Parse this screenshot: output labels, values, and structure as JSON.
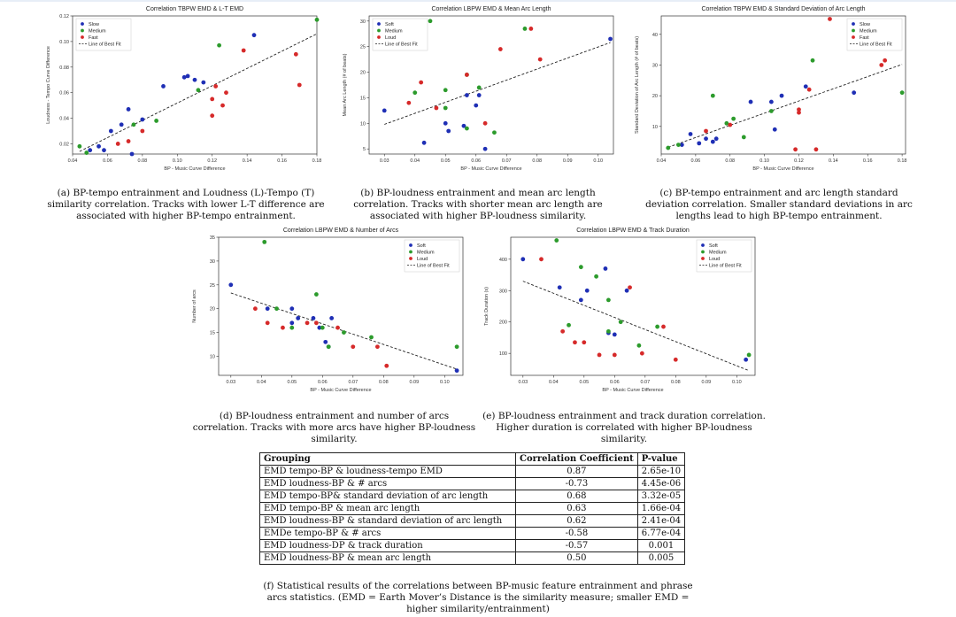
{
  "figures": [
    {
      "id": "a",
      "chart_data": {
        "type": "scatter",
        "title": "Correlation TBPW EMD & L-T EMD",
        "xlabel": "BP - Music Curve Difference",
        "ylabel": "Loudness - Tempo Curve Difference",
        "xlim": [
          0.04,
          0.18
        ],
        "ylim": [
          0.012,
          0.12
        ],
        "xticks": [
          "0.04",
          "0.06",
          "0.08",
          "0.10",
          "0.12",
          "0.14",
          "0.16",
          "0.18"
        ],
        "yticks": [
          "0.02",
          "0.04",
          "0.06",
          "0.08",
          "0.10",
          "0.12"
        ],
        "legend_position": "top-left",
        "series": [
          {
            "name": "Slow",
            "color": "#1f2fb5",
            "points": [
              [
                0.058,
                0.015
              ],
              [
                0.062,
                0.03
              ],
              [
                0.068,
                0.035
              ],
              [
                0.072,
                0.047
              ],
              [
                0.08,
                0.039
              ],
              [
                0.092,
                0.065
              ],
              [
                0.104,
                0.072
              ],
              [
                0.106,
                0.073
              ],
              [
                0.11,
                0.07
              ],
              [
                0.115,
                0.068
              ],
              [
                0.144,
                0.105
              ],
              [
                0.05,
                0.015
              ],
              [
                0.055,
                0.018
              ],
              [
                0.074,
                0.012
              ]
            ]
          },
          {
            "name": "Medium",
            "color": "#2c9b2c",
            "points": [
              [
                0.044,
                0.018
              ],
              [
                0.048,
                0.013
              ],
              [
                0.075,
                0.035
              ],
              [
                0.088,
                0.038
              ],
              [
                0.112,
                0.062
              ],
              [
                0.124,
                0.097
              ],
              [
                0.18,
                0.117
              ]
            ]
          },
          {
            "name": "Fast",
            "color": "#d62a2a",
            "points": [
              [
                0.066,
                0.02
              ],
              [
                0.072,
                0.022
              ],
              [
                0.08,
                0.03
              ],
              [
                0.12,
                0.042
              ],
              [
                0.122,
                0.065
              ],
              [
                0.126,
                0.05
              ],
              [
                0.128,
                0.06
              ],
              [
                0.138,
                0.093
              ],
              [
                0.168,
                0.09
              ],
              [
                0.17,
                0.066
              ],
              [
                0.12,
                0.055
              ]
            ]
          }
        ],
        "fit_name": "Line of Best Fit",
        "fit_line": [
          [
            0.044,
            0.014
          ],
          [
            0.18,
            0.106
          ]
        ]
      },
      "caption": [
        "(a) BP-tempo entrainment and Loudness (L)-Tempo (T)",
        "similarity correlation. Tracks with lower L-T difference are",
        "associated with higher BP-tempo entrainment."
      ]
    },
    {
      "id": "b",
      "chart_data": {
        "type": "scatter",
        "title": "Correlation LBPW EMD & Mean Arc Length",
        "xlabel": "BP - Music Curve Difference",
        "ylabel": "Mean Arc Length (# of beats)",
        "xlim": [
          0.025,
          0.105
        ],
        "ylim": [
          4,
          31
        ],
        "xticks": [
          "0.03",
          "0.04",
          "0.05",
          "0.06",
          "0.07",
          "0.08",
          "0.09",
          "0.10"
        ],
        "yticks": [
          "5",
          "10",
          "15",
          "20",
          "25",
          "30"
        ],
        "legend_position": "top-left",
        "series": [
          {
            "name": "Soft",
            "color": "#1f2fb5",
            "points": [
              [
                0.03,
                12.5
              ],
              [
                0.043,
                6.2
              ],
              [
                0.05,
                10
              ],
              [
                0.051,
                8.5
              ],
              [
                0.056,
                9.5
              ],
              [
                0.057,
                15.5
              ],
              [
                0.06,
                13.5
              ],
              [
                0.061,
                15.5
              ],
              [
                0.063,
                5
              ],
              [
                0.104,
                26.5
              ]
            ]
          },
          {
            "name": "Medium",
            "color": "#2c9b2c",
            "points": [
              [
                0.04,
                16
              ],
              [
                0.045,
                30
              ],
              [
                0.05,
                16.5
              ],
              [
                0.05,
                13
              ],
              [
                0.057,
                9
              ],
              [
                0.057,
                19.5
              ],
              [
                0.061,
                17
              ],
              [
                0.066,
                8.2
              ],
              [
                0.076,
                28.5
              ]
            ]
          },
          {
            "name": "Loud",
            "color": "#d62a2a",
            "points": [
              [
                0.038,
                14
              ],
              [
                0.042,
                18
              ],
              [
                0.047,
                13
              ],
              [
                0.057,
                19.5
              ],
              [
                0.063,
                10
              ],
              [
                0.068,
                24.5
              ],
              [
                0.078,
                28.5
              ],
              [
                0.081,
                22.5
              ]
            ]
          }
        ],
        "fit_name": "Line of Best Fit",
        "fit_line": [
          [
            0.03,
            9.8
          ],
          [
            0.104,
            25.8
          ]
        ]
      },
      "caption": [
        "(b) BP-loudness entrainment and mean arc length",
        "correlation. Tracks with shorter mean arc length are",
        "associated with higher BP-loudness similarity."
      ]
    },
    {
      "id": "c",
      "chart_data": {
        "type": "scatter",
        "title": "Correlation TBPW EMD & Standard Deviation of Arc Length",
        "xlabel": "BP - Music Curve Difference",
        "ylabel": "Standard Deviation of Arc Length (# of beats)",
        "xlim": [
          0.04,
          0.182
        ],
        "ylim": [
          1,
          46
        ],
        "xticks": [
          "0.04",
          "0.06",
          "0.08",
          "0.10",
          "0.12",
          "0.14",
          "0.16",
          "0.18"
        ],
        "yticks": [
          "10",
          "20",
          "30",
          "40"
        ],
        "legend_position": "top-right",
        "series": [
          {
            "name": "Slow",
            "color": "#1f2fb5",
            "points": [
              [
                0.052,
                4
              ],
              [
                0.057,
                7.5
              ],
              [
                0.062,
                4.5
              ],
              [
                0.066,
                6
              ],
              [
                0.07,
                5
              ],
              [
                0.072,
                6
              ],
              [
                0.092,
                18
              ],
              [
                0.104,
                18
              ],
              [
                0.106,
                9
              ],
              [
                0.11,
                20
              ],
              [
                0.124,
                23
              ],
              [
                0.152,
                21
              ]
            ]
          },
          {
            "name": "Medium",
            "color": "#2c9b2c",
            "points": [
              [
                0.044,
                3
              ],
              [
                0.05,
                4
              ],
              [
                0.07,
                20
              ],
              [
                0.078,
                11
              ],
              [
                0.082,
                12.5
              ],
              [
                0.088,
                6.5
              ],
              [
                0.104,
                15
              ],
              [
                0.128,
                31.5
              ],
              [
                0.18,
                21
              ]
            ]
          },
          {
            "name": "Fast",
            "color": "#d62a2a",
            "points": [
              [
                0.066,
                8.5
              ],
              [
                0.08,
                10.5
              ],
              [
                0.118,
                2.5
              ],
              [
                0.12,
                15.5
              ],
              [
                0.12,
                14.5
              ],
              [
                0.126,
                22
              ],
              [
                0.13,
                2.5
              ],
              [
                0.138,
                45
              ],
              [
                0.168,
                30
              ],
              [
                0.17,
                31.5
              ]
            ]
          }
        ],
        "fit_name": "Line of Best Fit",
        "fit_line": [
          [
            0.044,
            3.2
          ],
          [
            0.18,
            30.2
          ]
        ]
      },
      "caption": [
        "(c) BP-tempo entrainment and arc length standard",
        "deviation correlation. Smaller standard deviations in arc",
        "lengths lead to high BP-tempo entrainment."
      ]
    },
    {
      "id": "d",
      "chart_data": {
        "type": "scatter",
        "title": "Correlation LBPW EMD & Number of Arcs",
        "xlabel": "BP - Music Curve Difference",
        "ylabel": "Number of arcs",
        "xlim": [
          0.026,
          0.106
        ],
        "ylim": [
          6,
          35
        ],
        "xticks": [
          "0.03",
          "0.04",
          "0.05",
          "0.06",
          "0.07",
          "0.08",
          "0.09",
          "0.10"
        ],
        "yticks": [
          "10",
          "15",
          "20",
          "25",
          "30",
          "35"
        ],
        "legend_position": "top-right",
        "series": [
          {
            "name": "Soft",
            "color": "#1f2fb5",
            "points": [
              [
                0.03,
                25
              ],
              [
                0.042,
                20
              ],
              [
                0.05,
                20
              ],
              [
                0.05,
                17
              ],
              [
                0.052,
                18
              ],
              [
                0.057,
                18
              ],
              [
                0.059,
                16
              ],
              [
                0.061,
                13
              ],
              [
                0.062,
                12
              ],
              [
                0.063,
                18
              ],
              [
                0.104,
                7
              ]
            ]
          },
          {
            "name": "Medium",
            "color": "#2c9b2c",
            "points": [
              [
                0.041,
                34
              ],
              [
                0.045,
                20
              ],
              [
                0.05,
                16
              ],
              [
                0.058,
                23
              ],
              [
                0.06,
                16
              ],
              [
                0.062,
                12
              ],
              [
                0.067,
                15
              ],
              [
                0.076,
                14
              ],
              [
                0.104,
                12
              ]
            ]
          },
          {
            "name": "Loud",
            "color": "#d62a2a",
            "points": [
              [
                0.038,
                20
              ],
              [
                0.042,
                17
              ],
              [
                0.047,
                16
              ],
              [
                0.055,
                17
              ],
              [
                0.058,
                17
              ],
              [
                0.065,
                16
              ],
              [
                0.07,
                12
              ],
              [
                0.078,
                12
              ],
              [
                0.081,
                8
              ]
            ]
          }
        ],
        "fit_name": "Line of Best Fit",
        "fit_line": [
          [
            0.03,
            23.3
          ],
          [
            0.104,
            7.3
          ]
        ]
      },
      "caption": [
        "(d) BP-loudness entrainment and number of arcs",
        "correlation. Tracks with more arcs have higher BP-loudness",
        "similarity."
      ]
    },
    {
      "id": "e",
      "chart_data": {
        "type": "scatter",
        "title": "Correlation LBPW EMD & Track Duration",
        "xlabel": "BP - Music Curve Difference",
        "ylabel": "Track Duration (s)",
        "xlim": [
          0.026,
          0.106
        ],
        "ylim": [
          30,
          470
        ],
        "xticks": [
          "0.03",
          "0.04",
          "0.05",
          "0.06",
          "0.07",
          "0.08",
          "0.09",
          "0.10"
        ],
        "yticks": [
          "100",
          "200",
          "300",
          "400"
        ],
        "legend_position": "top-right",
        "series": [
          {
            "name": "Soft",
            "color": "#1f2fb5",
            "points": [
              [
                0.03,
                400
              ],
              [
                0.042,
                310
              ],
              [
                0.049,
                270
              ],
              [
                0.051,
                300
              ],
              [
                0.057,
                370
              ],
              [
                0.058,
                165
              ],
              [
                0.06,
                160
              ],
              [
                0.064,
                300
              ],
              [
                0.103,
                80
              ]
            ]
          },
          {
            "name": "Medium",
            "color": "#2c9b2c",
            "points": [
              [
                0.041,
                460
              ],
              [
                0.045,
                190
              ],
              [
                0.049,
                375
              ],
              [
                0.054,
                345
              ],
              [
                0.058,
                170
              ],
              [
                0.058,
                270
              ],
              [
                0.062,
                200
              ],
              [
                0.068,
                125
              ],
              [
                0.074,
                185
              ],
              [
                0.104,
                95
              ]
            ]
          },
          {
            "name": "Loud",
            "color": "#d62a2a",
            "points": [
              [
                0.036,
                400
              ],
              [
                0.043,
                170
              ],
              [
                0.047,
                135
              ],
              [
                0.05,
                135
              ],
              [
                0.055,
                95
              ],
              [
                0.06,
                95
              ],
              [
                0.065,
                310
              ],
              [
                0.069,
                100
              ],
              [
                0.076,
                185
              ],
              [
                0.08,
                80
              ]
            ]
          }
        ],
        "fit_name": "Line of Best Fit",
        "fit_line": [
          [
            0.03,
            330
          ],
          [
            0.104,
            45
          ]
        ]
      },
      "caption": [
        "(e) BP-loudness entrainment and track duration correlation.",
        "Higher duration is correlated with higher BP-loudness",
        "similarity."
      ]
    }
  ],
  "table": {
    "headers": [
      "Grouping",
      "Correlation Coefficient",
      "P-value"
    ],
    "rows": [
      [
        "EMD tempo-BP & loudness-tempo EMD",
        "0.87",
        "2.65e-10"
      ],
      [
        "EMD loudness-BP & # arcs",
        "-0.73",
        "4.45e-06"
      ],
      [
        "EMD tempo-BP& standard deviation of arc length",
        "0.68",
        "3.32e-05"
      ],
      [
        "EMD tempo-BP & mean arc length",
        "0.63",
        "1.66e-04"
      ],
      [
        "EMD loudness-BP & standard deviation of arc length",
        "0.62",
        "2.41e-04"
      ],
      [
        "EMDe tempo-BP & # arcs",
        "-0.58",
        "6.77e-04"
      ],
      [
        "EMD loudness-DP & track duration",
        "-0.57",
        "0.001"
      ],
      [
        "EMD loudness-BP & mean arc length",
        "0.50",
        "0.005"
      ]
    ],
    "caption": [
      "(f) Statistical results of the correlations between BP-music feature entrainment and phrase",
      "arcs statistics. (EMD = Earth Mover’s Distance is the similarity measure; smaller EMD =",
      "higher similarity/entrainment)"
    ]
  }
}
